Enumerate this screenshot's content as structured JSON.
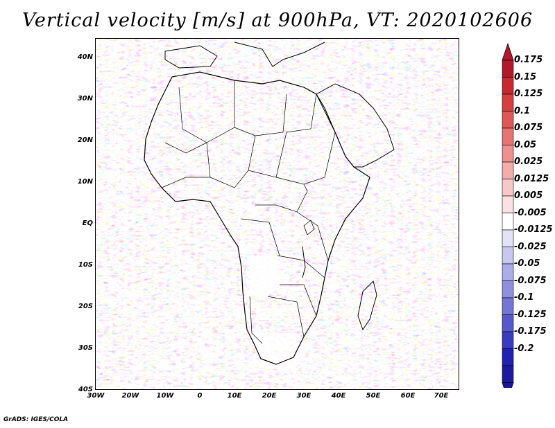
{
  "title": "Vertical velocity [m/s] at 900hPa, VT: 2020102606",
  "footer": "GrADS: IGES/COLA",
  "map": {
    "region": "Africa",
    "lat_labels": [
      "40N",
      "30N",
      "20N",
      "10N",
      "EQ",
      "10S",
      "20S",
      "30S",
      "40S"
    ],
    "lon_labels": [
      "30W",
      "20W",
      "10W",
      "0",
      "10E",
      "20E",
      "30E",
      "40E",
      "50E",
      "60E",
      "70E"
    ],
    "lat_range": [
      -40,
      45
    ],
    "lon_range": [
      -30,
      75
    ]
  },
  "colorbar": {
    "labels": [
      "0.175",
      "0.15",
      "0.125",
      "0.1",
      "0.075",
      "0.05",
      "0.025",
      "0.0125",
      "0.005",
      "-0.005",
      "-0.0125",
      "-0.025",
      "-0.05",
      "-0.075",
      "-0.1",
      "-0.125",
      "-0.175",
      "-0.2"
    ],
    "colors": [
      "#b2182b",
      "#c8282e",
      "#d63f3f",
      "#e05757",
      "#e87373",
      "#ef9090",
      "#f4adad",
      "#f8c8c8",
      "#fbe2e2",
      "#ffffff",
      "#e3e3f7",
      "#c7c8f0",
      "#acade8",
      "#8f91df",
      "#7476d6",
      "#5659cc",
      "#3a3cc0",
      "#1f22b3",
      "#1e1a9e"
    ],
    "top_color": "#b2182b",
    "bottom_color": "#1a16a0"
  }
}
